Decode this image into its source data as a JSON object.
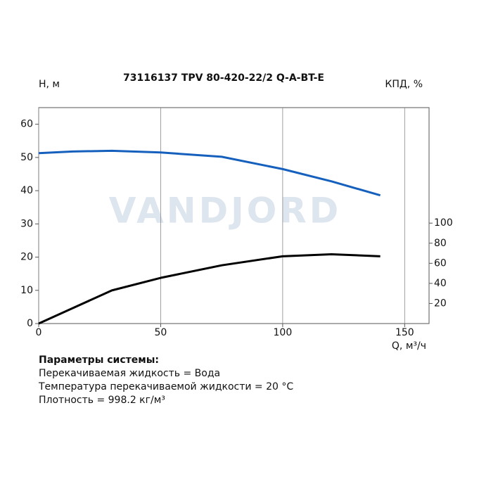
{
  "chart_data": {
    "type": "line",
    "title": "73116137 TPV 80-420-22/2 Q-A-BT-E",
    "ylabel": "H, м",
    "y2label": "КПД, %",
    "xlabel": "Q, м³/ч",
    "watermark": "VANDJORD",
    "x": [
      0,
      14,
      30,
      50,
      75,
      100,
      120,
      140
    ],
    "series": [
      {
        "color": "#1560bd",
        "values": [
          51.3,
          51.8,
          52.0,
          51.5,
          50.2,
          46.5,
          42.8,
          38.6
        ]
      },
      {
        "color": "#000000",
        "axis": "y2",
        "values": [
          0,
          15.4,
          33,
          45.5,
          58,
          67,
          69,
          67
        ]
      }
    ],
    "xlim": [
      0,
      160
    ],
    "xticks": [
      0,
      50,
      100,
      150
    ],
    "ylim": [
      0,
      65
    ],
    "yticks": [
      0,
      10,
      20,
      30,
      40,
      50,
      60
    ],
    "y2lim": [
      0,
      215
    ],
    "y2ticks": [
      20,
      40,
      60,
      80,
      100
    ],
    "grid": true
  },
  "parameters": {
    "title": "Параметры системы:",
    "lines": [
      "Перекачиваемая жидкость = Вода",
      "Температура перекачиваемой жидкости = 20 °C",
      "Плотность = 998.2 кг/м³"
    ]
  }
}
